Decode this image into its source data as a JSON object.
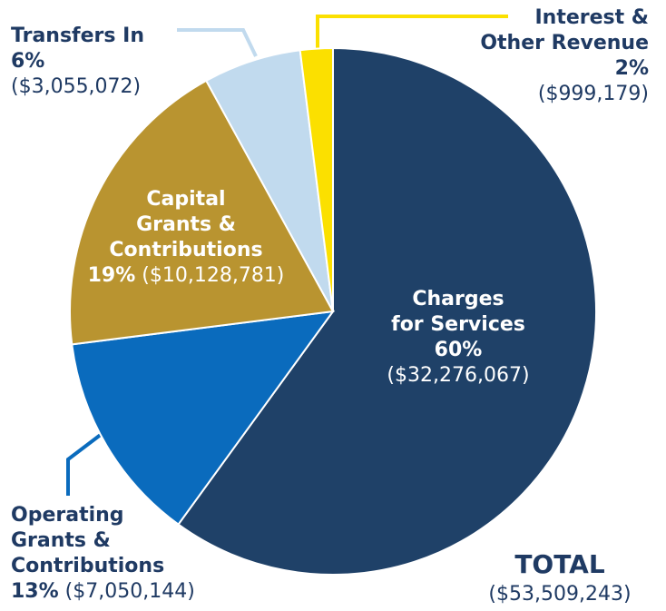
{
  "chart_data": {
    "type": "pie",
    "categories": [
      "Charges\nfor Services",
      "Operating\nGrants &\nContributions",
      "Capital\nGrants &\nContributions",
      "Transfers In",
      "Interest &\nOther Revenue"
    ],
    "values": [
      60,
      13,
      19,
      6,
      2
    ],
    "value_labels": [
      "60%",
      "13%",
      "19%",
      "6%",
      "2%"
    ],
    "amounts": [
      "($32,276,067)",
      "($7,050,144)",
      "($10,128,781)",
      "($3,055,072)",
      "($999,179)"
    ],
    "colors": [
      "#1f4168",
      "#0a6bbd",
      "#b99430",
      "#c1daee",
      "#fbe000"
    ],
    "total_label": "TOTAL",
    "total_amount": "($53,509,243)"
  }
}
